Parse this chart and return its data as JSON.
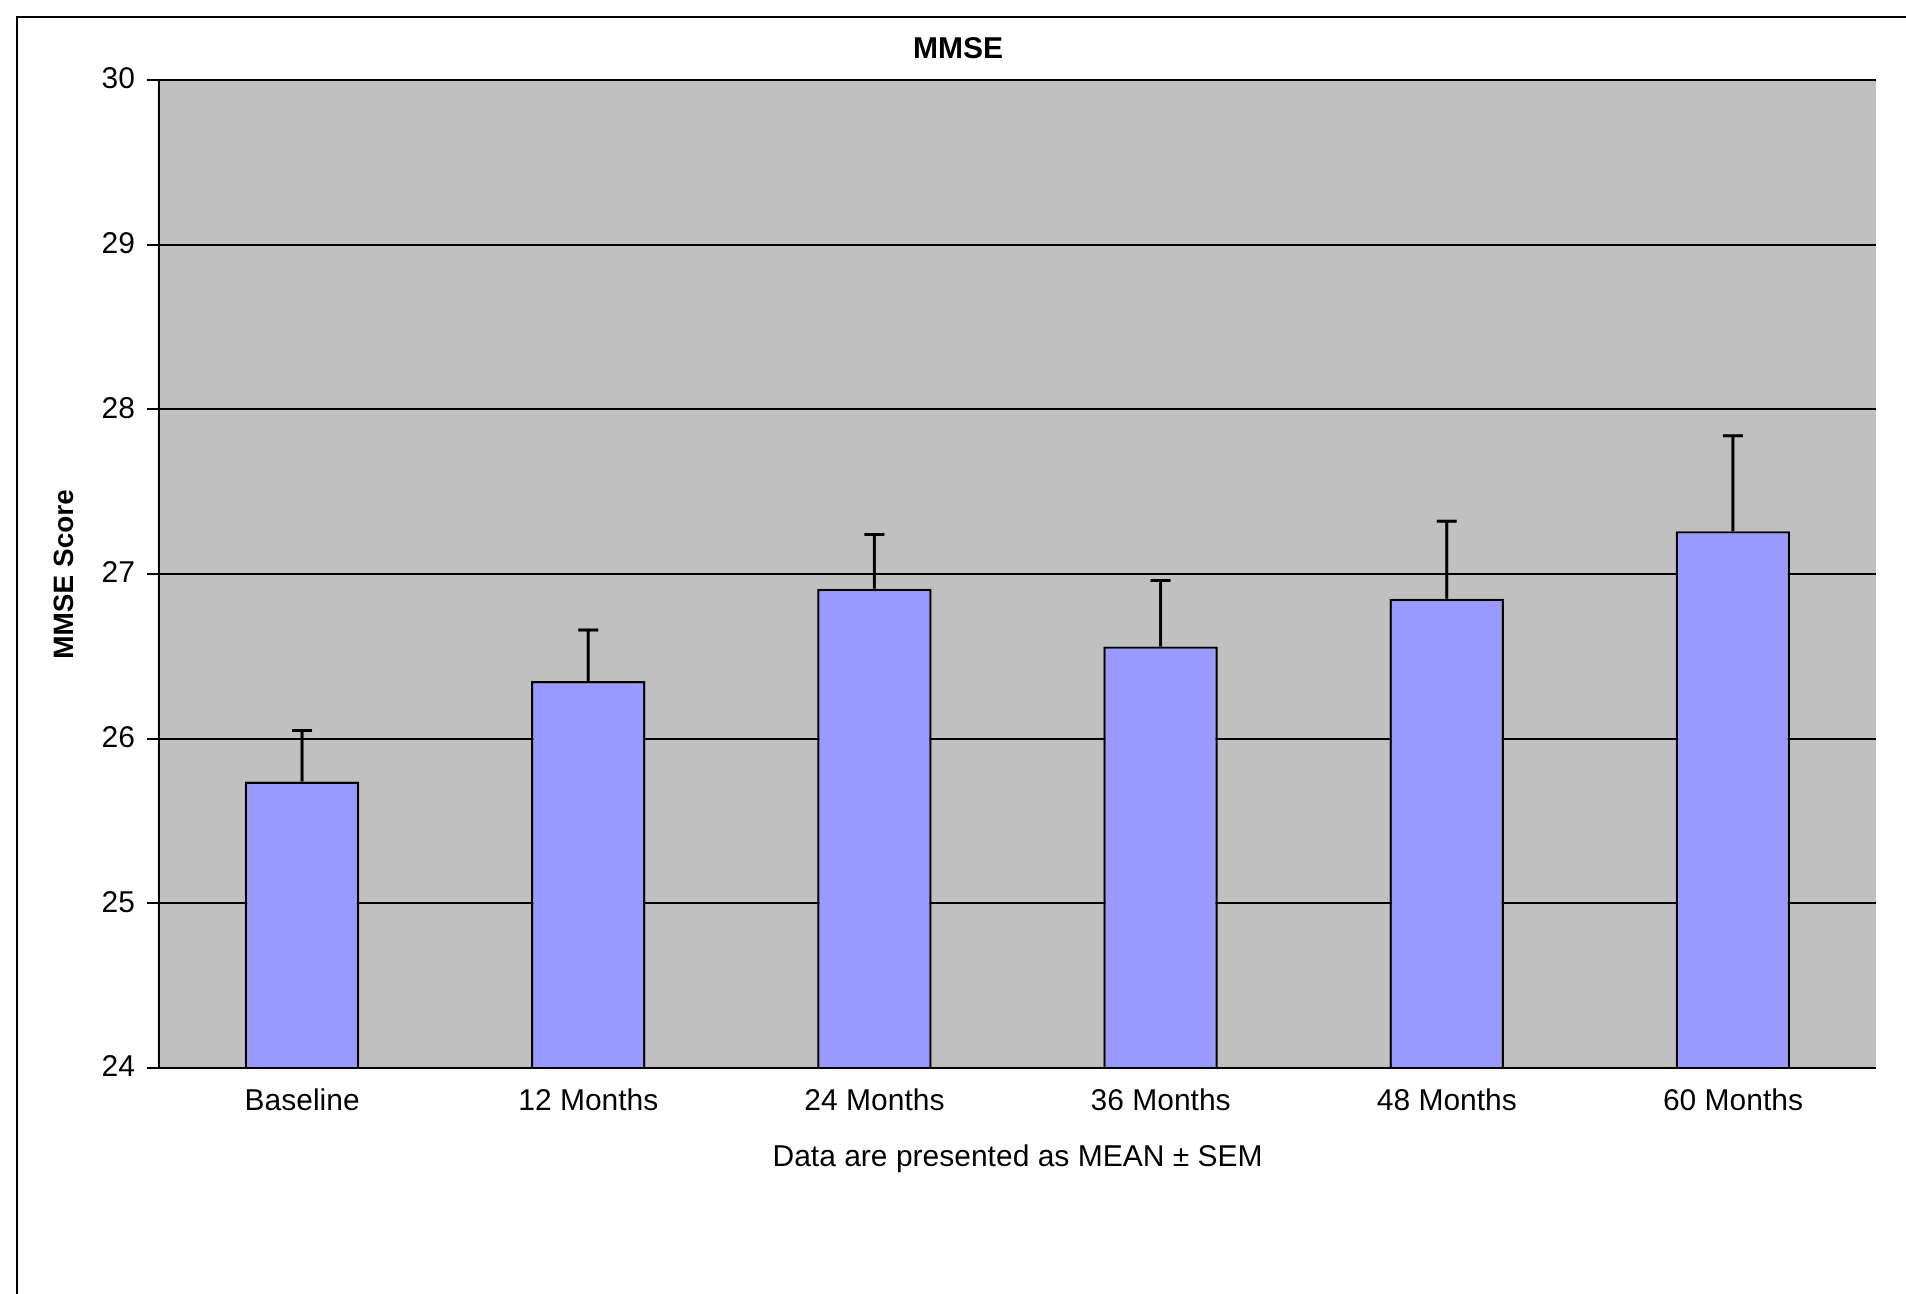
{
  "chart_data": {
    "type": "bar",
    "title": "MMSE",
    "ylabel": "MMSE Score",
    "xlabel": "Data are presented as MEAN ± SEM",
    "categories": [
      "Baseline",
      "12 Months",
      "24 Months",
      "36 Months",
      "48 Months",
      "60 Months"
    ],
    "values": [
      25.74,
      26.35,
      26.91,
      26.56,
      26.85,
      27.26
    ],
    "errors": [
      [
        25.74,
        26.05
      ],
      [
        26.35,
        26.66
      ],
      [
        26.91,
        27.24
      ],
      [
        26.56,
        26.96
      ],
      [
        26.85,
        27.32
      ],
      [
        27.26,
        27.84
      ]
    ],
    "color": "#9999ff",
    "ylim": [
      24,
      30
    ],
    "yticks": [
      24,
      25,
      26,
      27,
      28,
      29,
      30
    ],
    "grid": "y",
    "legend": false
  }
}
